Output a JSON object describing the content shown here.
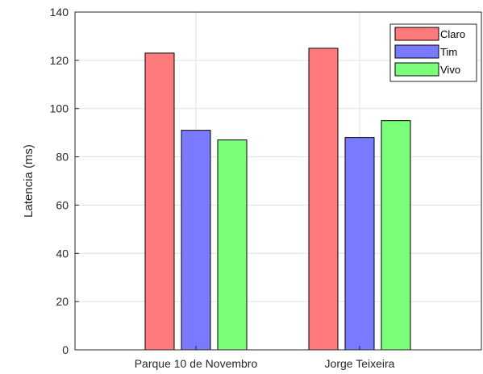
{
  "chart_data": {
    "type": "bar",
    "title": "",
    "xlabel": "",
    "ylabel": "Latencia (ms)",
    "categories": [
      "Parque 10 de Novembro",
      "Jorge Teixeira"
    ],
    "series": [
      {
        "name": "Claro",
        "values": [
          123,
          125
        ],
        "color": "#ff7a7a"
      },
      {
        "name": "Tim",
        "values": [
          91,
          88
        ],
        "color": "#7a7aff"
      },
      {
        "name": "Vivo",
        "values": [
          87,
          95
        ],
        "color": "#7aff7a"
      }
    ],
    "ylim": [
      0,
      140
    ],
    "yticks": [
      0,
      20,
      40,
      60,
      80,
      100,
      120,
      140
    ],
    "grid": true,
    "legend_position": "top-right"
  }
}
